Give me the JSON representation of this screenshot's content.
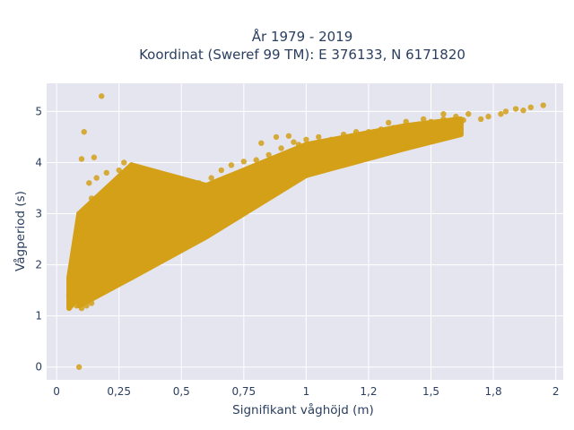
{
  "chart_data": {
    "type": "scatter",
    "title_line1": "År 1979 - 2019",
    "title_line2": "Koordinat (Sweref 99 TM): E 376133, N 6171820",
    "xlabel": "Signifikant våghöjd (m)",
    "ylabel": "Vågperiod (s)",
    "xlim": [
      -0.04,
      2.03
    ],
    "ylim": [
      -0.25,
      5.55
    ],
    "xticks": [
      0,
      0.25,
      0.5,
      0.75,
      1,
      1.25,
      1.5,
      1.75,
      2
    ],
    "xtick_labels": [
      "0",
      "0,25",
      "0,5",
      "0,75",
      "1",
      "1,2",
      "1,5",
      "1,8",
      "2"
    ],
    "yticks": [
      0,
      1,
      2,
      3,
      4,
      5
    ],
    "ytick_labels": [
      "0",
      "1",
      "2",
      "3",
      "4",
      "5"
    ],
    "grid": true,
    "colors": {
      "marker": "#d4a017",
      "plot_bg": "#e5e5f0",
      "grid": "#ffffff",
      "text": "#2a3f5f"
    },
    "points": [
      [
        0.09,
        0.0
      ],
      [
        0.18,
        5.3
      ],
      [
        0.11,
        4.6
      ],
      [
        0.1,
        4.07
      ],
      [
        0.15,
        4.1
      ],
      [
        0.27,
        4.0
      ],
      [
        0.3,
        3.95
      ],
      [
        0.06,
        1.5
      ],
      [
        0.05,
        1.4
      ],
      [
        0.07,
        1.3
      ],
      [
        0.08,
        1.2
      ],
      [
        0.1,
        1.15
      ],
      [
        0.12,
        1.2
      ],
      [
        0.07,
        1.7
      ],
      [
        0.08,
        2.1
      ],
      [
        0.09,
        2.5
      ],
      [
        0.1,
        2.9
      ],
      [
        0.12,
        3.1
      ],
      [
        0.14,
        3.3
      ],
      [
        0.13,
        3.6
      ],
      [
        0.16,
        3.7
      ],
      [
        0.2,
        3.8
      ],
      [
        0.25,
        3.85
      ],
      [
        0.32,
        3.7
      ],
      [
        0.36,
        3.6
      ],
      [
        0.41,
        3.55
      ],
      [
        0.47,
        3.5
      ],
      [
        0.52,
        3.55
      ],
      [
        0.57,
        3.6
      ],
      [
        0.62,
        3.7
      ],
      [
        0.66,
        3.85
      ],
      [
        0.7,
        3.95
      ],
      [
        0.75,
        4.02
      ],
      [
        0.8,
        4.05
      ],
      [
        0.85,
        4.15
      ],
      [
        0.9,
        4.28
      ],
      [
        0.95,
        4.4
      ],
      [
        1.0,
        4.45
      ],
      [
        1.05,
        4.5
      ],
      [
        1.1,
        4.45
      ],
      [
        1.15,
        4.55
      ],
      [
        1.2,
        4.6
      ],
      [
        1.25,
        4.6
      ],
      [
        1.3,
        4.65
      ],
      [
        1.35,
        4.68
      ],
      [
        1.4,
        4.7
      ],
      [
        1.45,
        4.75
      ],
      [
        1.5,
        4.8
      ],
      [
        1.55,
        4.85
      ],
      [
        1.6,
        4.9
      ],
      [
        1.65,
        4.95
      ],
      [
        1.7,
        4.85
      ],
      [
        1.78,
        4.95
      ],
      [
        1.8,
        5.0
      ],
      [
        1.84,
        5.05
      ],
      [
        1.87,
        5.02
      ],
      [
        1.9,
        5.08
      ],
      [
        1.95,
        5.12
      ],
      [
        1.73,
        4.9
      ],
      [
        1.63,
        4.83
      ],
      [
        1.55,
        4.95
      ],
      [
        1.47,
        4.85
      ],
      [
        1.4,
        4.8
      ],
      [
        1.33,
        4.78
      ],
      [
        0.14,
        1.25
      ],
      [
        0.2,
        1.5
      ],
      [
        0.25,
        1.7
      ],
      [
        0.3,
        1.9
      ],
      [
        0.35,
        2.0
      ],
      [
        0.4,
        2.1
      ],
      [
        0.45,
        2.2
      ],
      [
        0.5,
        2.4
      ],
      [
        0.55,
        2.5
      ],
      [
        0.6,
        2.65
      ],
      [
        0.65,
        2.85
      ],
      [
        0.7,
        3.0
      ],
      [
        0.75,
        3.15
      ],
      [
        0.8,
        3.3
      ],
      [
        0.85,
        3.45
      ],
      [
        0.9,
        3.55
      ],
      [
        0.95,
        3.65
      ],
      [
        1.0,
        3.75
      ],
      [
        1.05,
        3.85
      ],
      [
        1.1,
        3.92
      ],
      [
        1.15,
        4.0
      ],
      [
        1.2,
        4.05
      ],
      [
        1.25,
        4.1
      ],
      [
        1.3,
        4.2
      ],
      [
        1.35,
        4.25
      ],
      [
        1.4,
        4.3
      ],
      [
        1.45,
        4.38
      ],
      [
        1.5,
        4.45
      ],
      [
        1.55,
        4.55
      ],
      [
        1.6,
        4.6
      ],
      [
        1.08,
        4.28
      ],
      [
        0.97,
        4.35
      ],
      [
        0.88,
        4.5
      ],
      [
        0.82,
        4.38
      ],
      [
        0.93,
        4.52
      ]
    ],
    "bands": [
      {
        "x": [
          0.05,
          0.09
        ],
        "y_low": [
          1.15,
          1.4
        ],
        "y_high": [
          1.75,
          3.0
        ]
      },
      {
        "x": [
          0.09,
          0.3
        ],
        "y_low": [
          1.2,
          1.75
        ],
        "y_high": [
          3.0,
          3.95
        ]
      },
      {
        "x": [
          0.3,
          0.6
        ],
        "y_low": [
          1.75,
          2.55
        ],
        "y_high": [
          3.95,
          3.55
        ]
      },
      {
        "x": [
          0.6,
          1.0
        ],
        "y_low": [
          2.55,
          3.75
        ],
        "y_high": [
          3.55,
          4.35
        ]
      },
      {
        "x": [
          1.0,
          1.4
        ],
        "y_low": [
          3.75,
          4.28
        ],
        "y_high": [
          4.35,
          4.72
        ]
      },
      {
        "x": [
          1.4,
          1.62
        ],
        "y_low": [
          4.28,
          4.55
        ],
        "y_high": [
          4.72,
          4.85
        ]
      }
    ]
  }
}
